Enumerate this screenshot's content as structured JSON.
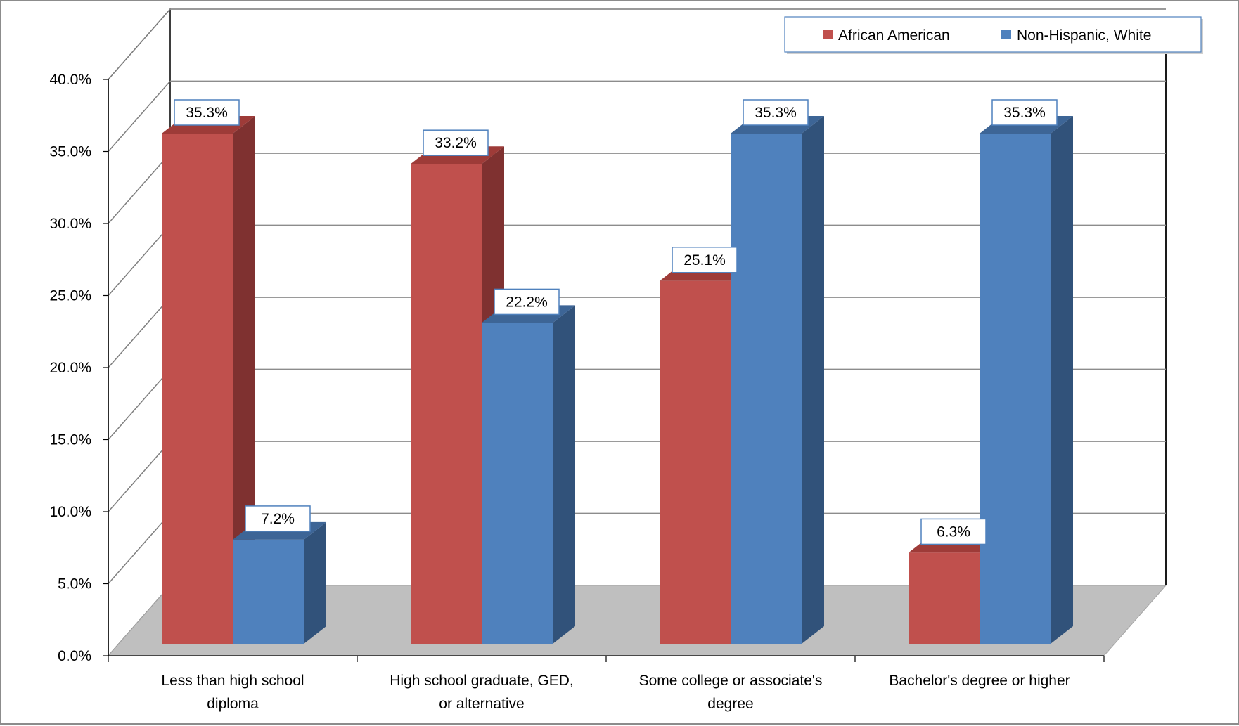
{
  "chart_data": {
    "type": "bar",
    "categories": [
      [
        "Less than high school",
        "diploma"
      ],
      [
        "High school graduate, GED,",
        "or alternative"
      ],
      [
        "Some college or associate's",
        "degree"
      ],
      [
        "Bachelor's degree or higher"
      ]
    ],
    "series": [
      {
        "name": "African American",
        "values": [
          35.3,
          33.2,
          25.1,
          6.3
        ],
        "color": "#c0504d",
        "side_color": "#7f3130",
        "top_color": "#9e3b38"
      },
      {
        "name": "Non-Hispanic, White",
        "values": [
          7.2,
          22.2,
          35.3,
          35.3
        ],
        "color": "#4f81bd",
        "side_color": "#31527a",
        "top_color": "#3d6596"
      }
    ],
    "data_labels": [
      [
        "35.3%",
        "33.2%",
        "25.1%",
        "6.3%"
      ],
      [
        "7.2%",
        "22.2%",
        "35.3%",
        "35.3%"
      ]
    ],
    "y_ticks": [
      "0.0%",
      "5.0%",
      "10.0%",
      "15.0%",
      "20.0%",
      "25.0%",
      "30.0%",
      "35.0%",
      "40.0%"
    ],
    "ylim": [
      0,
      40
    ],
    "grid": true,
    "legend_position": "top-right",
    "title": "",
    "xlabel": "",
    "ylabel": "",
    "floor_color": "#bfbfbf"
  }
}
